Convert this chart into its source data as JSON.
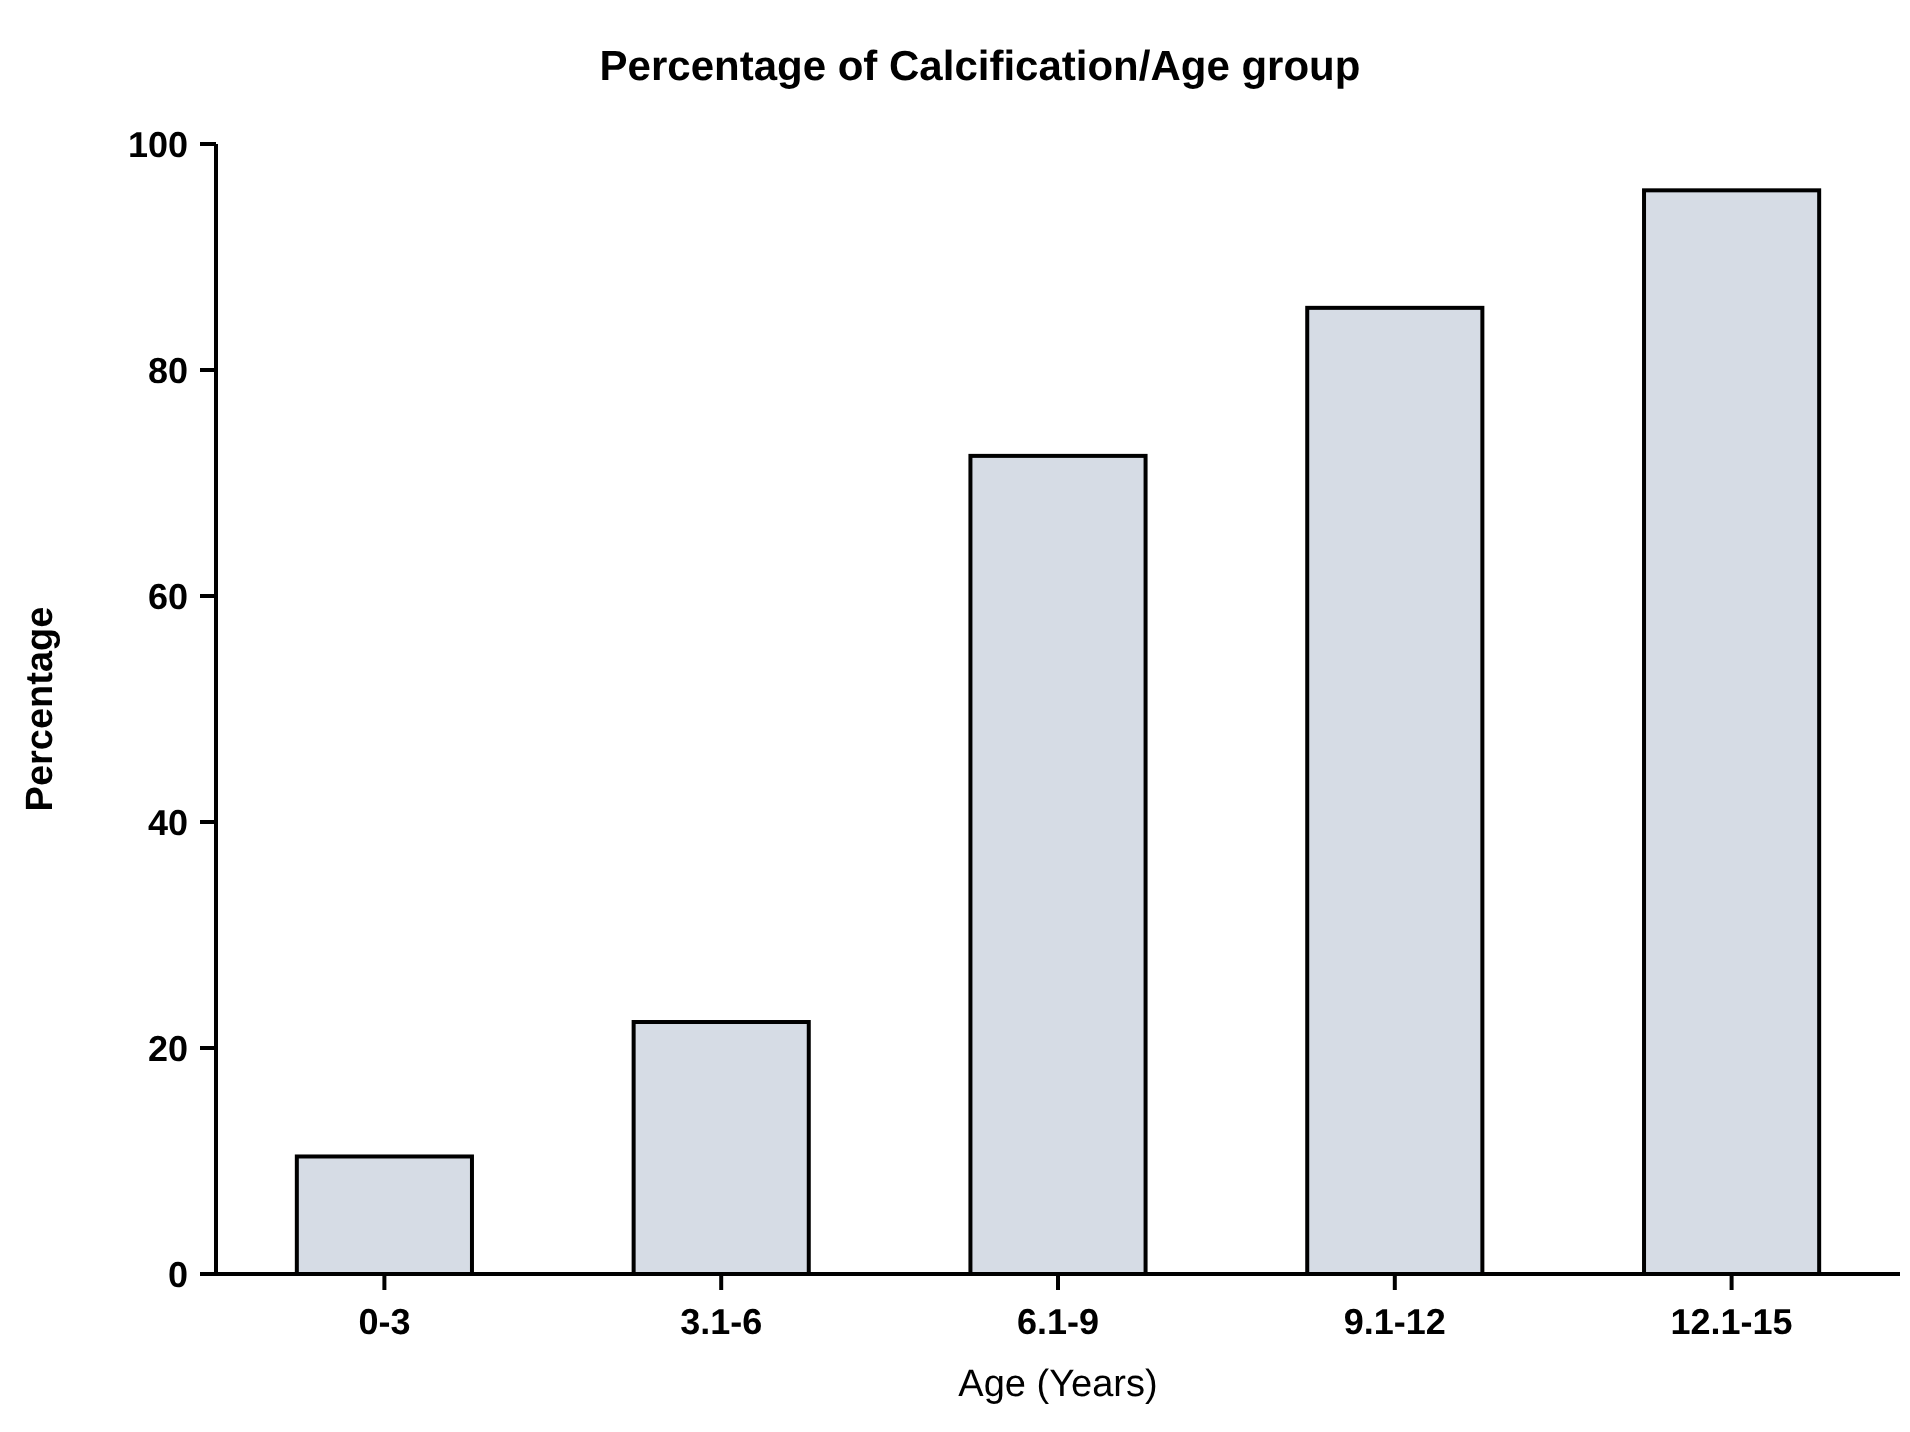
{
  "chart_data": {
    "type": "bar",
    "title": "Percentage of Calcification/Age group",
    "xlabel": "Age (Years)",
    "ylabel": "Percentage",
    "categories": [
      "0-3",
      "3.1-6",
      "6.1-9",
      "9.1-12",
      "12.1-15"
    ],
    "values": [
      10.4,
      22.3,
      72.4,
      85.5,
      95.9
    ],
    "color": "#d6dce5",
    "ylim": [
      0,
      100
    ],
    "yticks": [
      0,
      20,
      40,
      60,
      80,
      100
    ],
    "grid": false
  }
}
